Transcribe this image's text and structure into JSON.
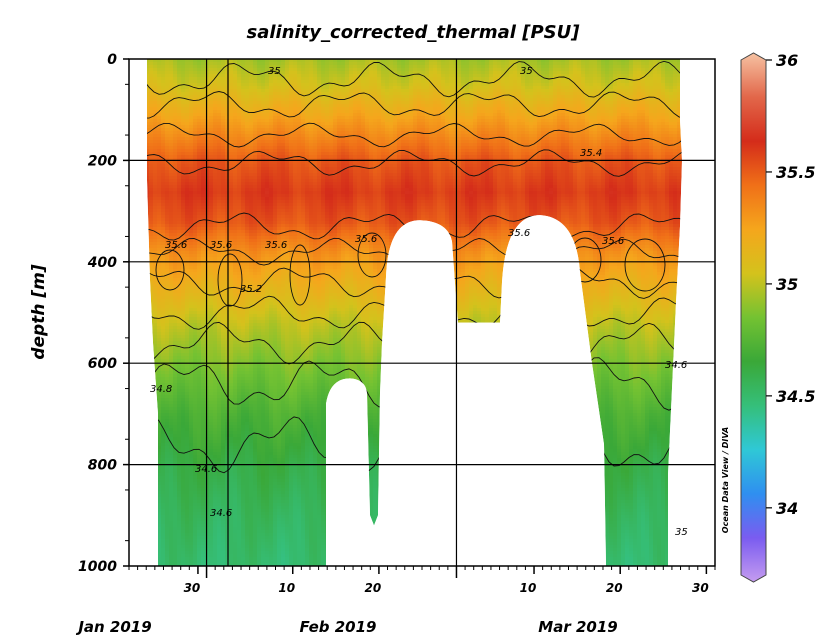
{
  "chart_data": {
    "type": "heatmap",
    "title": "salinity_corrected_thermal [PSU]",
    "ylabel": "depth [m]",
    "xlabel": "",
    "y_axis_inverted": true,
    "ylim": [
      0,
      1000
    ],
    "yticks": [
      "0",
      "200",
      "400",
      "600",
      "800",
      "1000"
    ],
    "xlim": [
      "2019-01-22",
      "2019-03-31"
    ],
    "x_day_ticks": [
      {
        "date": "2019-01-30",
        "label": "30"
      },
      {
        "date": "2019-02-10",
        "label": "10"
      },
      {
        "date": "2019-02-20",
        "label": "20"
      },
      {
        "date": "2019-03-10",
        "label": "10"
      },
      {
        "date": "2019-03-20",
        "label": "20"
      },
      {
        "date": "2019-03-30",
        "label": "30"
      }
    ],
    "x_month_labels": [
      "Jan 2019",
      "Feb 2019",
      "Mar 2019"
    ],
    "grid": true,
    "colorbar": {
      "range": [
        33.7,
        36.0
      ],
      "ticks": [
        "34",
        "34.5",
        "35",
        "35.5",
        "36"
      ],
      "colors": [
        "#c59cf0",
        "#7a5cf0",
        "#2f8ff0",
        "#2fc8d6",
        "#35bf7a",
        "#3aa838",
        "#74c232",
        "#d4c21c",
        "#f5a61c",
        "#f07018",
        "#d42c1a",
        "#e2674a",
        "#f6c2a2"
      ]
    },
    "profile": [
      {
        "depth": 0,
        "salinity": 34.95
      },
      {
        "depth": 50,
        "salinity": 35.05
      },
      {
        "depth": 100,
        "salinity": 35.2
      },
      {
        "depth": 150,
        "salinity": 35.35
      },
      {
        "depth": 200,
        "salinity": 35.5
      },
      {
        "depth": 260,
        "salinity": 35.58
      },
      {
        "depth": 320,
        "salinity": 35.5
      },
      {
        "depth": 380,
        "salinity": 35.3
      },
      {
        "depth": 450,
        "salinity": 35.15
      },
      {
        "depth": 520,
        "salinity": 35.0
      },
      {
        "depth": 600,
        "salinity": 34.87
      },
      {
        "depth": 700,
        "salinity": 34.72
      },
      {
        "depth": 800,
        "salinity": 34.62
      },
      {
        "depth": 900,
        "salinity": 34.55
      },
      {
        "depth": 1000,
        "salinity": 34.5
      }
    ],
    "contour_labels": [
      "35",
      "35",
      "35.4",
      "35.6",
      "35.6",
      "35.6",
      "35.6",
      "35.6",
      "35.6",
      "35.2",
      "34.8",
      "34.6",
      "34.6",
      "34.6",
      "35"
    ],
    "side_text": "Ocean Data View / DIVA"
  }
}
